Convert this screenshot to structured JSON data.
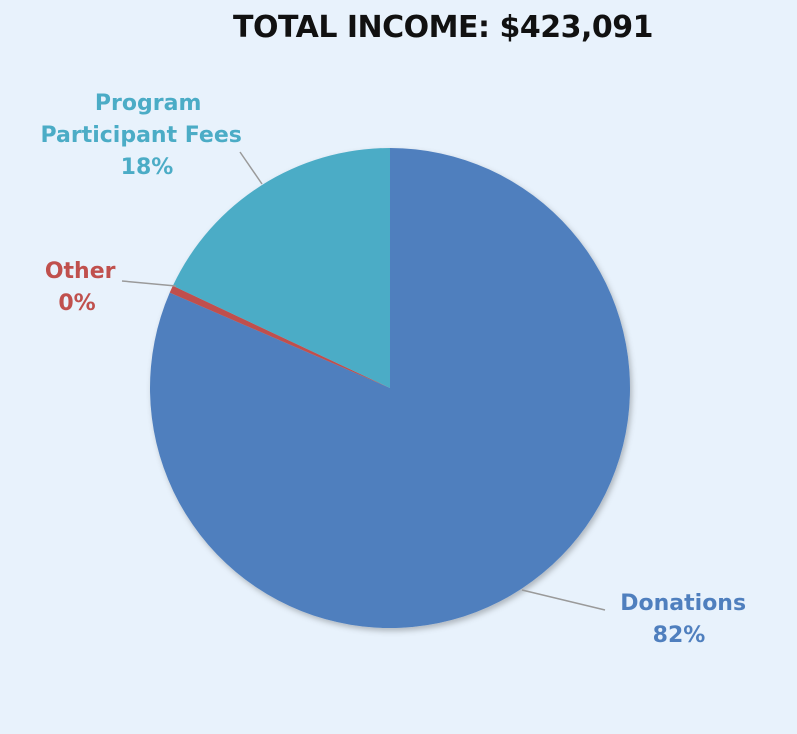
{
  "chart_data": {
    "type": "pie",
    "title": "TOTAL INCOME: $423,091",
    "slices": [
      {
        "name": "Donations",
        "value": 81.5,
        "label_pct": "82%",
        "color": "#4f7fbe"
      },
      {
        "name": "Other",
        "value": 0.5,
        "label_pct": "0%",
        "color": "#c0504d"
      },
      {
        "name": "Program Participant Fees",
        "value": 18,
        "label_pct": "18%",
        "color": "#4bacc6"
      }
    ],
    "start_angle_deg": 0,
    "direction": "clockwise"
  }
}
